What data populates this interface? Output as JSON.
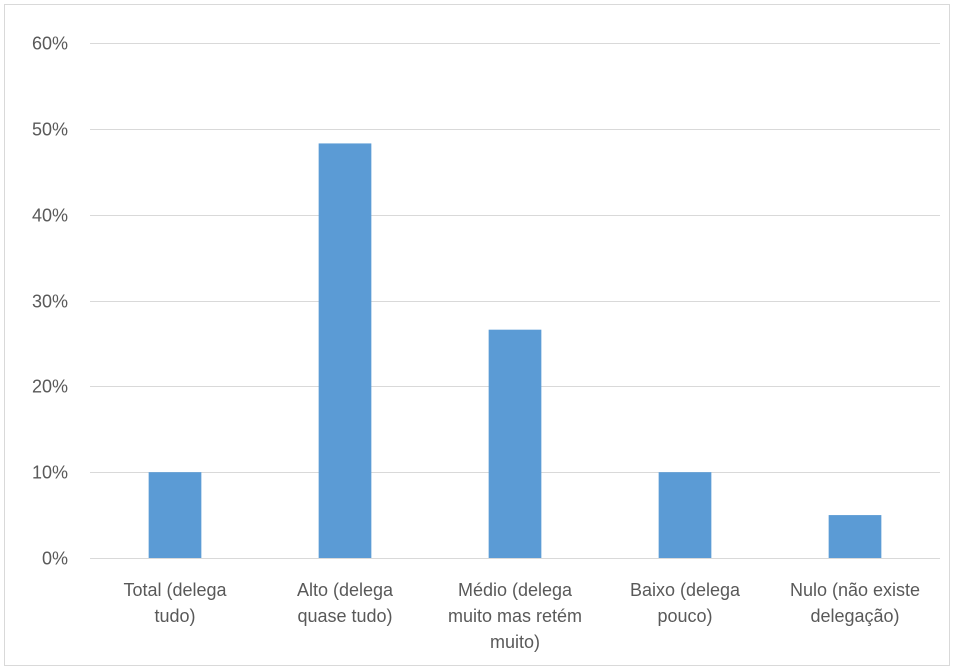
{
  "chart_data": {
    "type": "bar",
    "title": "",
    "xlabel": "",
    "ylabel": "",
    "categories": [
      [
        "Total (delega",
        "tudo)"
      ],
      [
        "Alto (delega",
        "quase tudo)"
      ],
      [
        "Médio (delega",
        "muito mas retém",
        "muito)"
      ],
      [
        "Baixo (delega",
        "pouco)"
      ],
      [
        "Nulo (não existe",
        "delegação)"
      ]
    ],
    "values": [
      0.1,
      0.483,
      0.266,
      0.1,
      0.05
    ],
    "ylim": [
      0,
      0.6
    ],
    "yticks": [
      0,
      0.1,
      0.2,
      0.3,
      0.4,
      0.5,
      0.6
    ],
    "ytick_labels": [
      "0%",
      "10%",
      "20%",
      "30%",
      "40%",
      "50%",
      "60%"
    ],
    "grid": true,
    "legend": "none",
    "colors": {
      "bar": "#5b9bd5",
      "grid": "#d9d9d9",
      "text": "#595959"
    }
  }
}
